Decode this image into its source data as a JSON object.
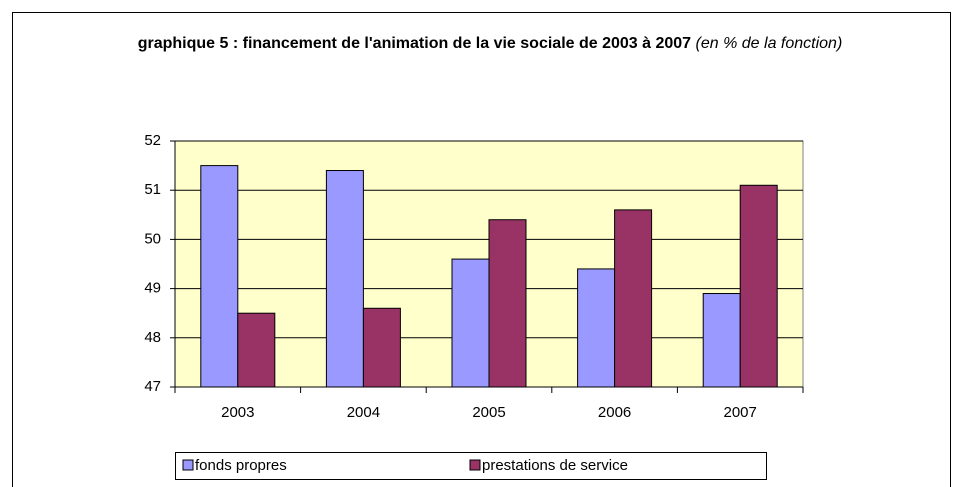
{
  "chart_data": {
    "type": "bar",
    "title": "graphique 5 : financement de l'animation de la vie sociale de 2003 à 2007",
    "subtitle": "(en % de la fonction)",
    "categories": [
      "2003",
      "2004",
      "2005",
      "2006",
      "2007"
    ],
    "series": [
      {
        "name": "fonds propres",
        "color": "#9999ff",
        "values": [
          51.5,
          51.4,
          49.6,
          49.4,
          48.9
        ]
      },
      {
        "name": "prestations de service",
        "color": "#993366",
        "values": [
          48.5,
          48.6,
          50.4,
          50.6,
          51.1
        ]
      }
    ],
    "ylim": [
      47,
      52
    ],
    "yticks": [
      47,
      48,
      49,
      50,
      51,
      52
    ],
    "grid": true,
    "legend": "bottom"
  }
}
